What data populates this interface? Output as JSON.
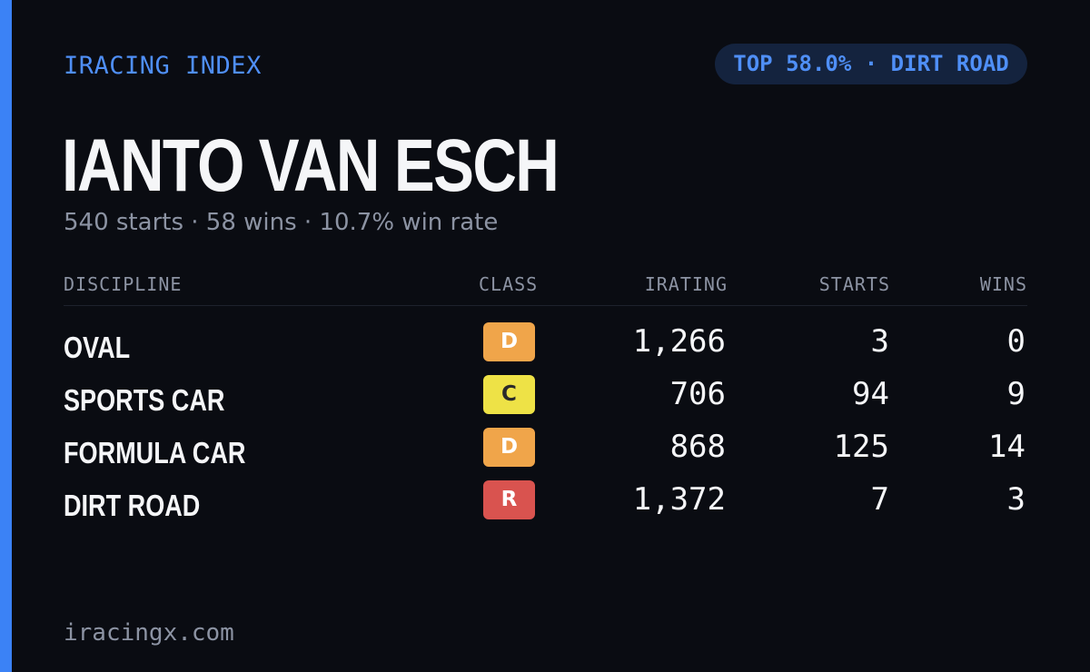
{
  "brand": "IRACING INDEX",
  "rank_badge": "TOP 58.0% · DIRT ROAD",
  "driver": {
    "name": "IANTO VAN ESCH",
    "summary": "540 starts · 58 wins · 10.7% win rate"
  },
  "table": {
    "headers": {
      "discipline": "DISCIPLINE",
      "class": "CLASS",
      "irating": "IRATING",
      "starts": "STARTS",
      "wins": "WINS"
    },
    "rows": [
      {
        "discipline": "OVAL",
        "class": "D",
        "class_color": "#f0a54a",
        "class_text_color": "#ffffff",
        "irating": "1,266",
        "starts": "3",
        "wins": "0"
      },
      {
        "discipline": "SPORTS CAR",
        "class": "C",
        "class_color": "#eee246",
        "class_text_color": "#2a2a2a",
        "irating": "706",
        "starts": "94",
        "wins": "9"
      },
      {
        "discipline": "FORMULA CAR",
        "class": "D",
        "class_color": "#f0a54a",
        "class_text_color": "#ffffff",
        "irating": "868",
        "starts": "125",
        "wins": "14"
      },
      {
        "discipline": "DIRT ROAD",
        "class": "R",
        "class_color": "#d9534f",
        "class_text_color": "#ffffff",
        "irating": "1,372",
        "starts": "7",
        "wins": "3"
      }
    ]
  },
  "footer": "iracingx.com",
  "colors": {
    "background": "#0a0c12",
    "accent": "#3b82f6",
    "text": "#f5f6f8",
    "muted": "#8c93a3"
  }
}
